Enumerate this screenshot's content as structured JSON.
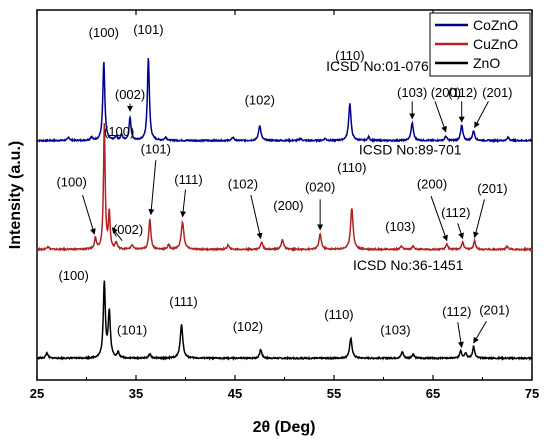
{
  "chart_data": {
    "type": "line",
    "xlabel": "2θ (Deg)",
    "ylabel": "Intensity (a.u.)",
    "xlim": [
      25,
      75
    ],
    "x_ticks": [
      25,
      35,
      45,
      55,
      65,
      75
    ],
    "y_ticks_shown": false,
    "grid": false,
    "legend_position": "top-right",
    "legend": [
      {
        "name": "CoZnO",
        "color": "#00008B"
      },
      {
        "name": "CuZnO",
        "color": "#B22222"
      },
      {
        "name": "ZnO",
        "color": "#000000"
      }
    ],
    "series": [
      {
        "name": "CoZnO",
        "color": "#00008B",
        "offset": 2.0,
        "peaks": [
          {
            "x": 28.2,
            "h": 0.03,
            "w": 0.12
          },
          {
            "x": 30.5,
            "h": 0.03,
            "w": 0.12
          },
          {
            "x": 31.75,
            "h": 0.72,
            "w": 0.12
          },
          {
            "x": 33.0,
            "h": 0.04,
            "w": 0.12
          },
          {
            "x": 33.55,
            "h": 0.05,
            "w": 0.12
          },
          {
            "x": 34.4,
            "h": 0.21,
            "w": 0.12
          },
          {
            "x": 36.25,
            "h": 0.76,
            "w": 0.12
          },
          {
            "x": 38.0,
            "h": 0.03,
            "w": 0.12
          },
          {
            "x": 44.8,
            "h": 0.03,
            "w": 0.12
          },
          {
            "x": 47.5,
            "h": 0.14,
            "w": 0.14
          },
          {
            "x": 51.6,
            "h": 0.02,
            "w": 0.12
          },
          {
            "x": 54.1,
            "h": 0.02,
            "w": 0.12
          },
          {
            "x": 56.6,
            "h": 0.34,
            "w": 0.14
          },
          {
            "x": 58.5,
            "h": 0.03,
            "w": 0.12
          },
          {
            "x": 62.9,
            "h": 0.16,
            "w": 0.14
          },
          {
            "x": 66.3,
            "h": 0.04,
            "w": 0.12
          },
          {
            "x": 67.9,
            "h": 0.14,
            "w": 0.13
          },
          {
            "x": 69.1,
            "h": 0.09,
            "w": 0.13
          },
          {
            "x": 72.6,
            "h": 0.03,
            "w": 0.12
          }
        ],
        "annotations": [
          {
            "text": "(100)",
            "x": 31.75,
            "y": 2.95
          },
          {
            "text": "(101)",
            "x": 36.25,
            "y": 2.98
          },
          {
            "text": "(002)",
            "x": 34.4,
            "y": 2.38
          },
          {
            "text": "(102)",
            "x": 47.5,
            "y": 2.33
          },
          {
            "text": "(110)",
            "x": 56.6,
            "y": 2.74
          },
          {
            "text": "(103)",
            "x": 62.9,
            "y": 2.4
          },
          {
            "text": "(200)",
            "x": 66.3,
            "y": 2.4
          },
          {
            "text": "(112)",
            "x": 68.0,
            "y": 2.4
          },
          {
            "text": "(201)",
            "x": 71.5,
            "y": 2.4
          }
        ],
        "reference": "ICSD No:01-076-0704"
      },
      {
        "name": "CuZnO",
        "color": "#B22222",
        "offset": 1.0,
        "peaks": [
          {
            "x": 26.1,
            "h": 0.03,
            "w": 0.12
          },
          {
            "x": 30.9,
            "h": 0.1,
            "w": 0.12
          },
          {
            "x": 31.8,
            "h": 1.15,
            "w": 0.1
          },
          {
            "x": 32.3,
            "h": 0.33,
            "w": 0.1
          },
          {
            "x": 33.0,
            "h": 0.06,
            "w": 0.12
          },
          {
            "x": 34.6,
            "h": 0.04,
            "w": 0.12
          },
          {
            "x": 36.4,
            "h": 0.28,
            "w": 0.12
          },
          {
            "x": 38.3,
            "h": 0.04,
            "w": 0.12
          },
          {
            "x": 39.7,
            "h": 0.25,
            "w": 0.16
          },
          {
            "x": 44.3,
            "h": 0.04,
            "w": 0.12
          },
          {
            "x": 47.7,
            "h": 0.07,
            "w": 0.13
          },
          {
            "x": 49.8,
            "h": 0.09,
            "w": 0.14
          },
          {
            "x": 53.6,
            "h": 0.14,
            "w": 0.14
          },
          {
            "x": 56.8,
            "h": 0.38,
            "w": 0.15
          },
          {
            "x": 61.8,
            "h": 0.03,
            "w": 0.12
          },
          {
            "x": 63.0,
            "h": 0.03,
            "w": 0.12
          },
          {
            "x": 66.4,
            "h": 0.05,
            "w": 0.12
          },
          {
            "x": 68.0,
            "h": 0.07,
            "w": 0.12
          },
          {
            "x": 69.2,
            "h": 0.08,
            "w": 0.12
          },
          {
            "x": 72.5,
            "h": 0.03,
            "w": 0.12
          }
        ],
        "annotations": [
          {
            "text": "(100)",
            "x": 33.3,
            "y": 2.04
          },
          {
            "text": "(100)",
            "x": 28.5,
            "y": 1.58
          },
          {
            "text": "(002)",
            "x": 34.2,
            "y": 1.14
          },
          {
            "text": "(101)",
            "x": 37.0,
            "y": 1.88
          },
          {
            "text": "(111)",
            "x": 40.3,
            "y": 1.6
          },
          {
            "text": "(102)",
            "x": 45.8,
            "y": 1.56
          },
          {
            "text": "(200)",
            "x": 50.4,
            "y": 1.36
          },
          {
            "text": "(020)",
            "x": 53.6,
            "y": 1.53
          },
          {
            "text": "(110)",
            "x": 56.8,
            "y": 1.71
          },
          {
            "text": "(103)",
            "x": 61.7,
            "y": 1.17
          },
          {
            "text": "(200)",
            "x": 64.9,
            "y": 1.56
          },
          {
            "text": "(112)",
            "x": 67.3,
            "y": 1.3
          },
          {
            "text": "(201)",
            "x": 71.0,
            "y": 1.52
          }
        ],
        "reference": "ICSD No:89-701"
      },
      {
        "name": "ZnO",
        "color": "#000000",
        "offset": 0.0,
        "peaks": [
          {
            "x": 26.0,
            "h": 0.05,
            "w": 0.12
          },
          {
            "x": 31.8,
            "h": 0.69,
            "w": 0.12
          },
          {
            "x": 32.3,
            "h": 0.42,
            "w": 0.13
          },
          {
            "x": 33.2,
            "h": 0.05,
            "w": 0.12
          },
          {
            "x": 36.4,
            "h": 0.04,
            "w": 0.12
          },
          {
            "x": 39.6,
            "h": 0.31,
            "w": 0.15
          },
          {
            "x": 47.6,
            "h": 0.08,
            "w": 0.13
          },
          {
            "x": 56.7,
            "h": 0.18,
            "w": 0.15
          },
          {
            "x": 61.9,
            "h": 0.06,
            "w": 0.13
          },
          {
            "x": 63.0,
            "h": 0.04,
            "w": 0.12
          },
          {
            "x": 67.8,
            "h": 0.07,
            "w": 0.12
          },
          {
            "x": 68.3,
            "h": 0.05,
            "w": 0.12
          },
          {
            "x": 69.1,
            "h": 0.11,
            "w": 0.12
          }
        ],
        "annotations": [
          {
            "text": "(100)",
            "x": 28.7,
            "y": 0.72
          },
          {
            "text": "(101)",
            "x": 34.6,
            "y": 0.22
          },
          {
            "text": "(111)",
            "x": 39.8,
            "y": 0.48
          },
          {
            "text": "(102)",
            "x": 46.3,
            "y": 0.25
          },
          {
            "text": "(110)",
            "x": 55.5,
            "y": 0.36
          },
          {
            "text": "(103)",
            "x": 61.2,
            "y": 0.22
          },
          {
            "text": "(112)",
            "x": 67.4,
            "y": 0.39
          },
          {
            "text": "(201)",
            "x": 71.2,
            "y": 0.4
          }
        ],
        "reference": "ICSD No:36-1451"
      }
    ],
    "arrows": [
      {
        "series": "CoZnO",
        "from": [
          34.4,
          2.34
        ],
        "to": [
          34.4,
          2.27
        ]
      },
      {
        "series": "CoZnO",
        "from": [
          62.9,
          2.36
        ],
        "to": [
          62.9,
          2.2
        ]
      },
      {
        "series": "CoZnO",
        "from": [
          65.2,
          2.36
        ],
        "to": [
          66.3,
          2.08
        ]
      },
      {
        "series": "CoZnO",
        "from": [
          67.9,
          2.36
        ],
        "to": [
          67.9,
          2.17
        ]
      },
      {
        "series": "CoZnO",
        "from": [
          70.6,
          2.36
        ],
        "to": [
          69.2,
          2.12
        ]
      },
      {
        "series": "CuZnO",
        "from": [
          29.6,
          1.5
        ],
        "to": [
          30.8,
          1.14
        ]
      },
      {
        "series": "CuZnO",
        "from": [
          33.6,
          1.08
        ],
        "to": [
          32.6,
          1.2
        ]
      },
      {
        "series": "CuZnO",
        "from": [
          37.0,
          1.82
        ],
        "to": [
          36.5,
          1.32
        ]
      },
      {
        "series": "CuZnO",
        "from": [
          40.0,
          1.55
        ],
        "to": [
          39.7,
          1.3
        ]
      },
      {
        "series": "CuZnO",
        "from": [
          46.6,
          1.5
        ],
        "to": [
          47.6,
          1.1
        ]
      },
      {
        "series": "CuZnO",
        "from": [
          53.6,
          1.46
        ],
        "to": [
          53.6,
          1.18
        ]
      },
      {
        "series": "CuZnO",
        "from": [
          64.8,
          1.49
        ],
        "to": [
          66.4,
          1.08
        ]
      },
      {
        "series": "CuZnO",
        "from": [
          67.5,
          1.24
        ],
        "to": [
          68.0,
          1.1
        ]
      },
      {
        "series": "CuZnO",
        "from": [
          70.2,
          1.46
        ],
        "to": [
          69.2,
          1.11
        ]
      },
      {
        "series": "ZnO",
        "from": [
          67.5,
          0.33
        ],
        "to": [
          67.9,
          0.1
        ]
      },
      {
        "series": "ZnO",
        "from": [
          70.4,
          0.34
        ],
        "to": [
          69.1,
          0.14
        ]
      }
    ],
    "references_text": [
      {
        "text": "ICSD No:01-076-0704",
        "x": 61.2,
        "y": 2.64
      },
      {
        "text": "ICSD No:89-701",
        "x": 62.7,
        "y": 1.87
      },
      {
        "text": "ICSD No:36-1451",
        "x": 62.5,
        "y": 0.81
      }
    ]
  }
}
